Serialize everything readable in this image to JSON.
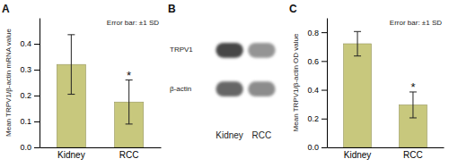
{
  "chart_data": [
    {
      "type": "bar",
      "title": "A",
      "categories": [
        "Kidney",
        "RCC"
      ],
      "values": [
        0.32,
        0.175
      ],
      "errors": [
        0.115,
        0.085
      ],
      "color": "#c8c87d",
      "ylabel": "Mean TRPV1/β-actin mRNA value",
      "ylim": [
        0,
        0.5
      ],
      "yticks": [
        {
          "value": 0,
          "label": "0.0"
        },
        0.1,
        0.2,
        0.3,
        0.4
      ],
      "annotations": [
        {
          "text": "Error bar: ±1 SD"
        },
        {
          "text": "*",
          "category": "RCC"
        }
      ]
    },
    {
      "type": "blot",
      "title": "B",
      "categories": [
        "Kidney",
        "RCC"
      ],
      "series": [
        {
          "name": "TRPV1",
          "values": [
            0.28,
            0.58
          ]
        },
        {
          "name": "β-actin",
          "values": [
            0.4,
            0.55
          ]
        }
      ]
    },
    {
      "type": "bar",
      "title": "C",
      "categories": [
        "Kidney",
        "RCC"
      ],
      "values": [
        0.72,
        0.295
      ],
      "errors": [
        0.085,
        0.09
      ],
      "color": "#c8c87d",
      "ylabel": "Mean TRPV1/β-actin OD value",
      "ylim": [
        0,
        0.9
      ],
      "yticks": [
        {
          "value": 0,
          "label": "0.0"
        },
        0.2,
        0.4,
        0.6,
        0.8
      ],
      "annotations": [
        {
          "text": "Error bar: ±1 SD"
        },
        {
          "text": "*",
          "category": "RCC"
        }
      ]
    }
  ]
}
